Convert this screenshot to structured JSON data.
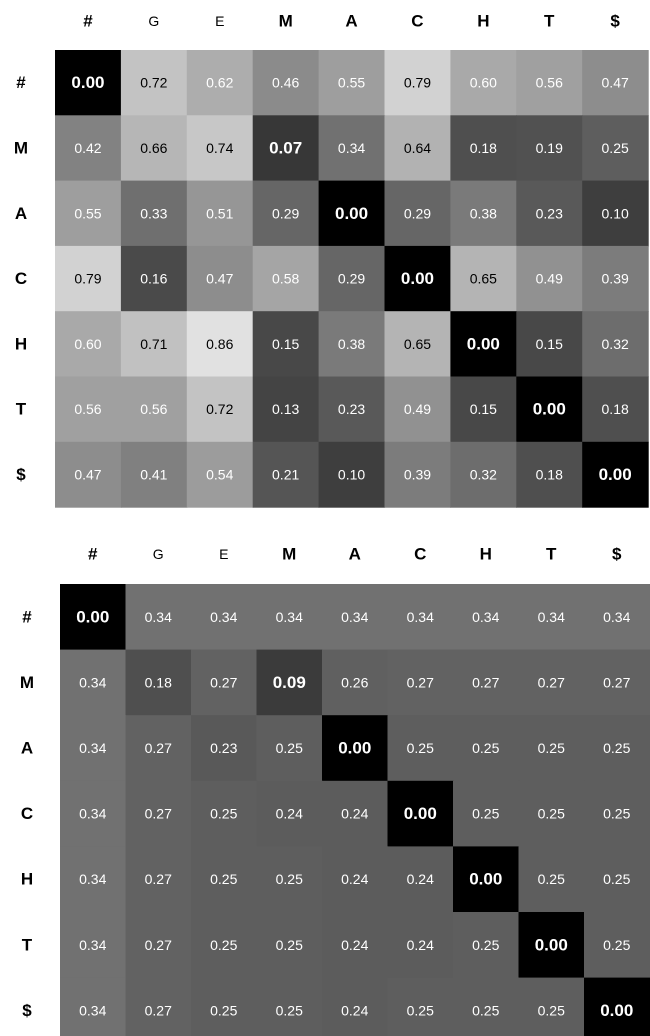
{
  "chart_data": [
    {
      "type": "heatmap",
      "columns": [
        "#",
        "G",
        "E",
        "M",
        "A",
        "C",
        "H",
        "T",
        "$"
      ],
      "rows": [
        "#",
        "M",
        "A",
        "C",
        "H",
        "T",
        "$"
      ],
      "bold_labels": [
        "#",
        "M",
        "A",
        "C",
        "H",
        "T",
        "$"
      ],
      "color_scale": "grayscale, 0 = black",
      "values": [
        [
          0.0,
          0.72,
          0.62,
          0.46,
          0.55,
          0.79,
          0.6,
          0.56,
          0.47
        ],
        [
          0.42,
          0.66,
          0.74,
          0.07,
          0.34,
          0.64,
          0.18,
          0.19,
          0.25
        ],
        [
          0.55,
          0.33,
          0.51,
          0.29,
          0.0,
          0.29,
          0.38,
          0.23,
          0.1
        ],
        [
          0.79,
          0.16,
          0.47,
          0.58,
          0.29,
          0.0,
          0.65,
          0.49,
          0.39
        ],
        [
          0.6,
          0.71,
          0.86,
          0.15,
          0.38,
          0.65,
          0.0,
          0.15,
          0.32
        ],
        [
          0.56,
          0.56,
          0.72,
          0.13,
          0.23,
          0.49,
          0.15,
          0.0,
          0.18
        ],
        [
          0.47,
          0.41,
          0.54,
          0.21,
          0.1,
          0.39,
          0.32,
          0.18,
          0.0
        ]
      ],
      "labels": [
        [
          "0.00",
          "0.72",
          "0.62",
          "0.46",
          "0.55",
          "0.79",
          "0.60",
          "0.56",
          "0.47"
        ],
        [
          "0.42",
          "0.66",
          "0.74",
          "0.07",
          "0.34",
          "0.64",
          "0.18",
          "0.19",
          "0.25"
        ],
        [
          "0.55",
          "0.33",
          "0.51",
          "0.29",
          "0.00",
          "0.29",
          "0.38",
          "0.23",
          "0.10"
        ],
        [
          "0.79",
          "0.16",
          "0.47",
          "0.58",
          "0.29",
          "0.00",
          "0.65",
          "0.49",
          "0.39"
        ],
        [
          "0.60",
          "0.71",
          "0.86",
          "0.15",
          "0.38",
          "0.65",
          "0.00",
          "0.15",
          "0.32"
        ],
        [
          "0.56",
          "0.56",
          "0.72",
          "0.13",
          "0.23",
          "0.49",
          "0.15",
          "0.00",
          "0.18"
        ],
        [
          "0.47",
          "0.41",
          "0.54",
          "0.21",
          "0.10",
          "0.39",
          "0.32",
          "0.18",
          "0.00"
        ]
      ]
    },
    {
      "type": "heatmap",
      "columns": [
        "#",
        "G",
        "E",
        "M",
        "A",
        "C",
        "H",
        "T",
        "$"
      ],
      "rows": [
        "#",
        "M",
        "A",
        "C",
        "H",
        "T",
        "$"
      ],
      "bold_labels": [
        "#",
        "M",
        "A",
        "C",
        "H",
        "T",
        "$"
      ],
      "color_scale": "grayscale, 0 = black",
      "values": [
        [
          0.0,
          0.34,
          0.34,
          0.34,
          0.34,
          0.34,
          0.34,
          0.34,
          0.34
        ],
        [
          0.34,
          0.18,
          0.27,
          0.09,
          0.26,
          0.27,
          0.27,
          0.27,
          0.27
        ],
        [
          0.34,
          0.27,
          0.23,
          0.25,
          0.0,
          0.25,
          0.25,
          0.25,
          0.25
        ],
        [
          0.34,
          0.27,
          0.25,
          0.24,
          0.24,
          0.0,
          0.25,
          0.25,
          0.25
        ],
        [
          0.34,
          0.27,
          0.25,
          0.25,
          0.24,
          0.24,
          0.0,
          0.25,
          0.25
        ],
        [
          0.34,
          0.27,
          0.25,
          0.25,
          0.24,
          0.24,
          0.25,
          0.0,
          0.25
        ],
        [
          0.34,
          0.27,
          0.25,
          0.25,
          0.24,
          0.25,
          0.25,
          0.25,
          0.0
        ]
      ],
      "labels": [
        [
          "0.00",
          "0.34",
          "0.34",
          "0.34",
          "0.34",
          "0.34",
          "0.34",
          "0.34",
          "0.34"
        ],
        [
          "0.34",
          "0.18",
          "0.27",
          "0.09",
          "0.26",
          "0.27",
          "0.27",
          "0.27",
          "0.27"
        ],
        [
          "0.34",
          "0.27",
          "0.23",
          "0.25",
          "0.00",
          "0.25",
          "0.25",
          "0.25",
          "0.25"
        ],
        [
          "0.34",
          "0.27",
          "0.25",
          "0.24",
          "0.24",
          "0.00",
          "0.25",
          "0.25",
          "0.25"
        ],
        [
          "0.34",
          "0.27",
          "0.25",
          "0.25",
          "0.24",
          "0.24",
          "0.00",
          "0.25",
          "0.25"
        ],
        [
          "0.34",
          "0.27",
          "0.25",
          "0.25",
          "0.24",
          "0.24",
          "0.25",
          "0.00",
          "0.25"
        ],
        [
          "0.34",
          "0.27",
          "0.25",
          "0.25",
          "0.24",
          "0.25",
          "0.25",
          "0.25",
          "0.00"
        ]
      ]
    }
  ]
}
